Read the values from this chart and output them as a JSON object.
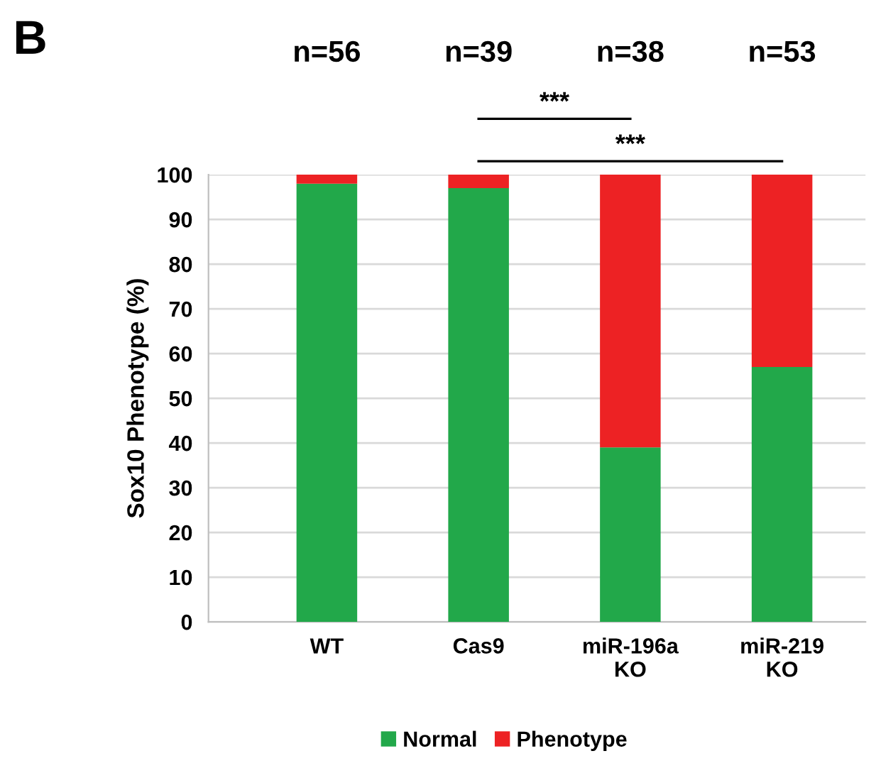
{
  "chart_data": {
    "type": "bar",
    "stacked": true,
    "ylabel": "Sox10 Phenotype (%)",
    "categories": [
      "WT",
      "Cas9",
      "miR-196a\nKO",
      "miR-219\nKO"
    ],
    "series": [
      {
        "name": "Normal",
        "color": "#22a84a",
        "values": [
          98,
          97,
          39,
          57
        ]
      },
      {
        "name": "Phenotype",
        "color": "#ed2224",
        "values": [
          2,
          3,
          61,
          43
        ]
      }
    ],
    "ylim": [
      0,
      100
    ],
    "yticks": [
      0,
      10,
      20,
      30,
      40,
      50,
      60,
      70,
      80,
      90,
      100
    ],
    "grid": "y",
    "legend": "bottom",
    "annotations": [
      "B",
      "n=56",
      "n=39",
      "n=38",
      "n=53",
      "***",
      "***"
    ]
  }
}
